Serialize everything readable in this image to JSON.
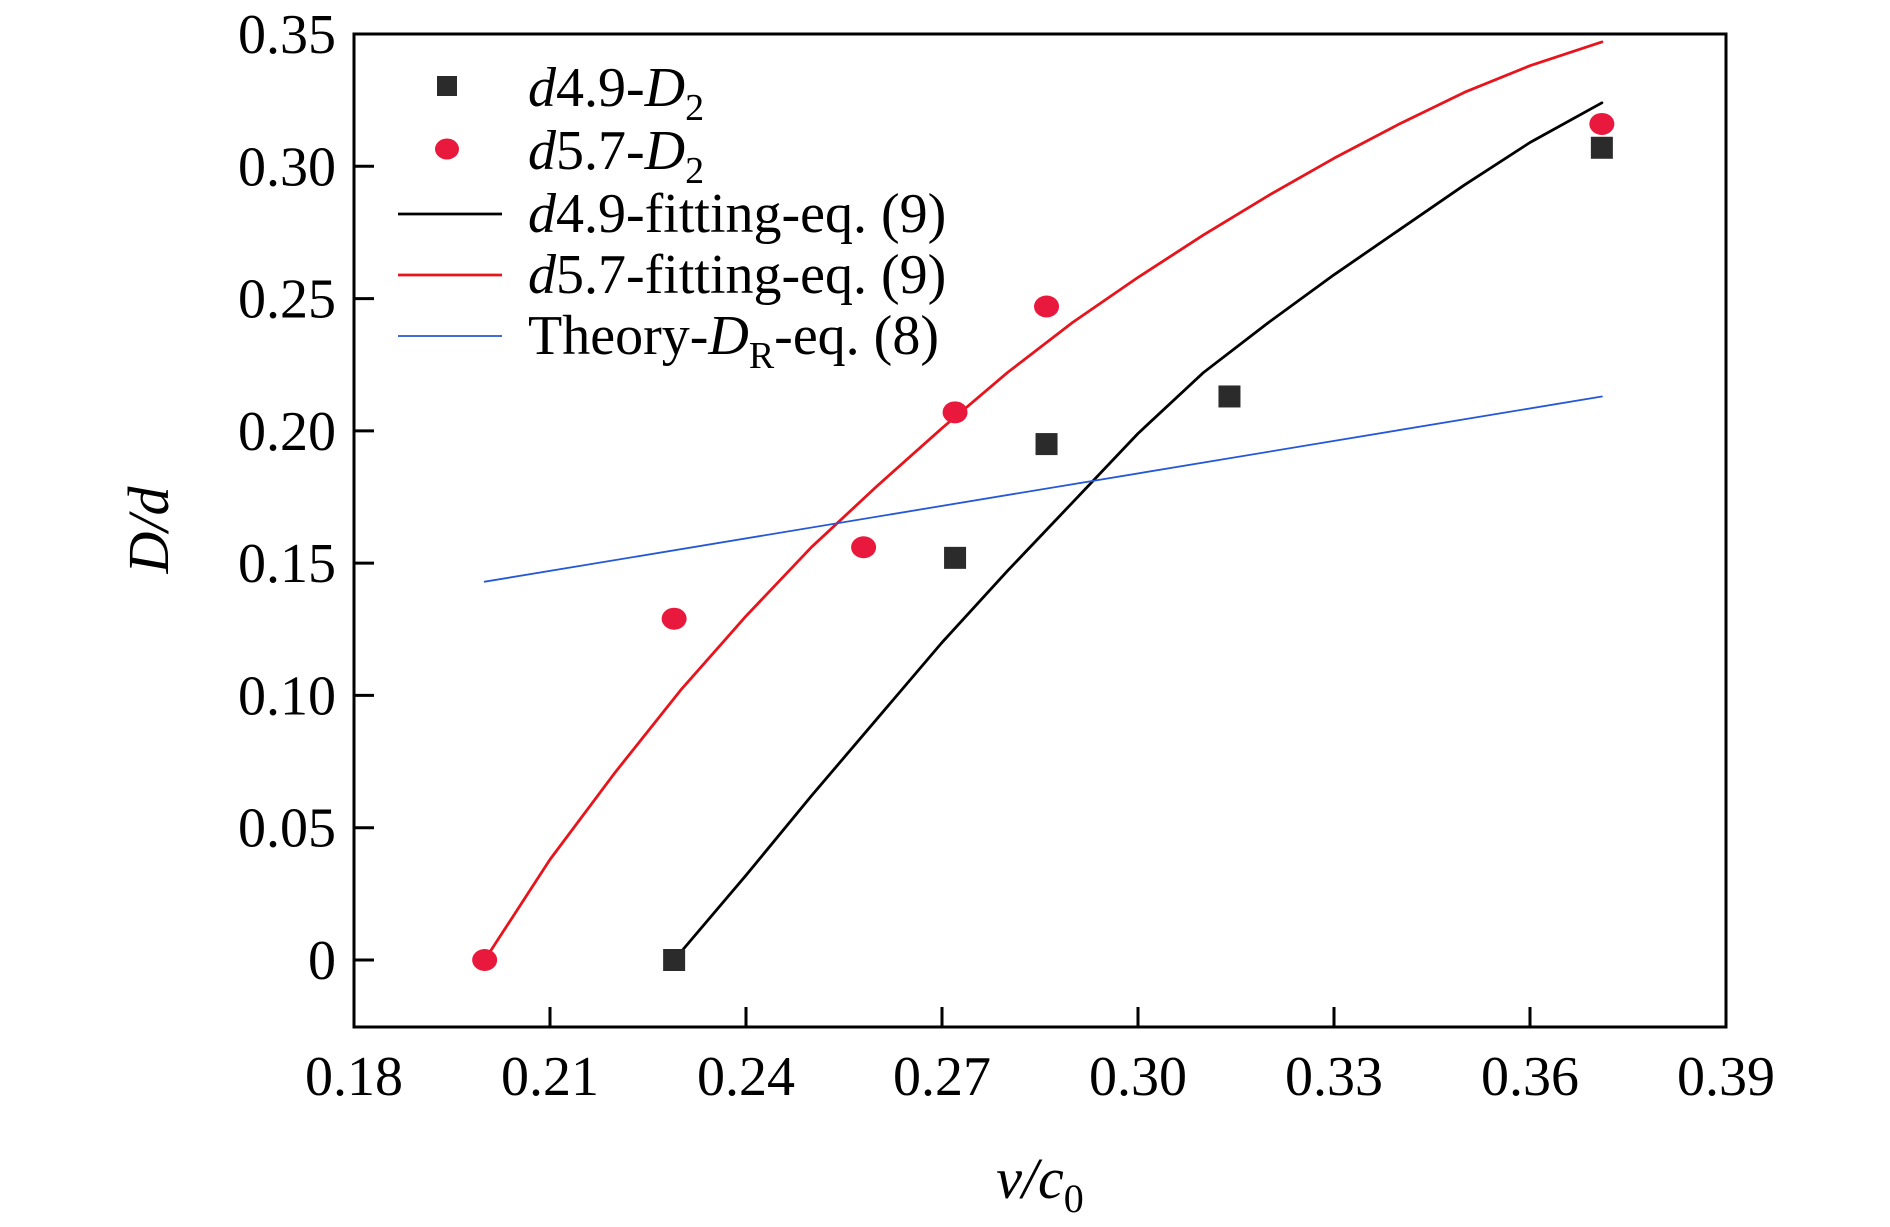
{
  "chart_data": {
    "type": "scatter",
    "xlim": [
      0.18,
      0.39
    ],
    "ylim": [
      0,
      0.35
    ],
    "x_ticks": [
      "0.18",
      "0.21",
      "0.24",
      "0.27",
      "0.30",
      "0.33",
      "0.36",
      "0.39"
    ],
    "y_ticks": [
      "0",
      "0.05",
      "0.10",
      "0.15",
      "0.20",
      "0.25",
      "0.30",
      "0.35"
    ],
    "xlabel": {
      "main": "v/c",
      "sub": "0"
    },
    "ylabel": "D/d",
    "grid": false,
    "legend_position": "top-left",
    "series": [
      {
        "name": "d4.9-D2",
        "legend": {
          "italic": "d",
          "text": "4.9-",
          "italic2": "D",
          "sub": "2"
        },
        "kind": "scatter",
        "marker": "square",
        "color": "#2b2b2b",
        "x": [
          0.229,
          0.272,
          0.286,
          0.314,
          0.371
        ],
        "y": [
          0.0,
          0.152,
          0.195,
          0.213,
          0.307
        ]
      },
      {
        "name": "d5.7-D2",
        "legend": {
          "italic": "d",
          "text": "5.7-",
          "italic2": "D",
          "sub": "2"
        },
        "kind": "scatter",
        "marker": "circle",
        "color": "#e8193c",
        "x": [
          0.2,
          0.229,
          0.258,
          0.272,
          0.286,
          0.371
        ],
        "y": [
          0.0,
          0.129,
          0.156,
          0.207,
          0.247,
          0.316
        ]
      },
      {
        "name": "d4.9-fitting-eq. (9)",
        "legend": {
          "italic": "d",
          "text": "4.9-fitting-eq. (9)"
        },
        "kind": "line",
        "color": "#000000",
        "x": [
          0.229,
          0.24,
          0.25,
          0.26,
          0.27,
          0.28,
          0.29,
          0.3,
          0.31,
          0.32,
          0.33,
          0.34,
          0.35,
          0.36,
          0.371
        ],
        "y": [
          0.0,
          0.032,
          0.062,
          0.091,
          0.12,
          0.147,
          0.173,
          0.199,
          0.222,
          0.241,
          0.259,
          0.276,
          0.293,
          0.309,
          0.324
        ]
      },
      {
        "name": "d5.7-fitting-eq. (9)",
        "legend": {
          "italic": "d",
          "text": "5.7-fitting-eq. (9)"
        },
        "kind": "line",
        "color": "#e8141c",
        "x": [
          0.2,
          0.21,
          0.22,
          0.23,
          0.24,
          0.25,
          0.26,
          0.27,
          0.28,
          0.29,
          0.3,
          0.31,
          0.32,
          0.33,
          0.34,
          0.35,
          0.36,
          0.371
        ],
        "y": [
          0.0,
          0.038,
          0.071,
          0.102,
          0.13,
          0.156,
          0.179,
          0.201,
          0.222,
          0.241,
          0.258,
          0.274,
          0.289,
          0.303,
          0.316,
          0.328,
          0.338,
          0.347
        ]
      },
      {
        "name": "Theory-DR-eq. (8)",
        "legend": {
          "text": "Theory-",
          "italic2": "D",
          "sub": "R",
          "text2": "-eq. (8)"
        },
        "kind": "line",
        "color": "#2458d6",
        "x": [
          0.2,
          0.371
        ],
        "y": [
          0.143,
          0.213
        ]
      }
    ]
  }
}
